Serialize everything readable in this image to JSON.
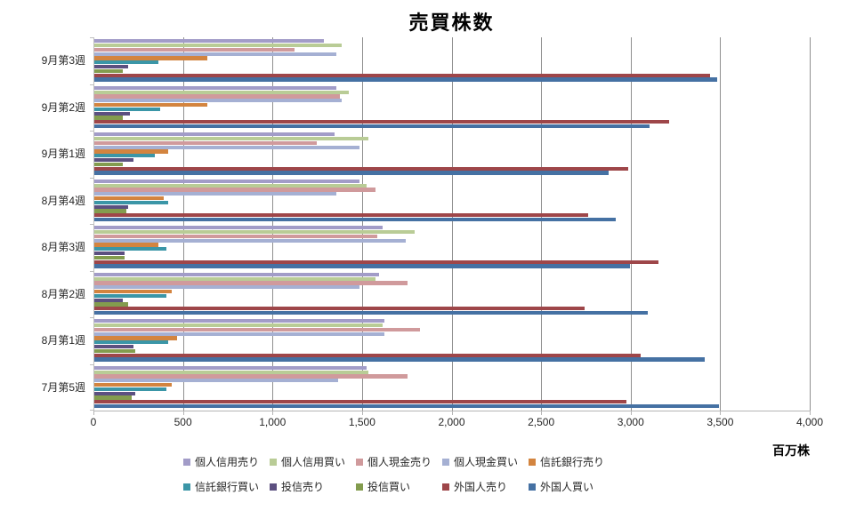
{
  "chart_data": {
    "type": "bar",
    "orientation": "horizontal",
    "title": "売買株数",
    "unit_label": "百万株",
    "grid": true,
    "legend_position": "bottom",
    "xlim": [
      0,
      4000
    ],
    "xticks": [
      "0",
      "500",
      "1,000",
      "1,500",
      "2,000",
      "2,500",
      "3,000",
      "3,500",
      "4,000"
    ],
    "categories": [
      "9月第3週",
      "9月第2週",
      "9月第1週",
      "8月第4週",
      "8月第3週",
      "8月第2週",
      "8月第1週",
      "7月第5週"
    ],
    "series": [
      {
        "name": "個人信用売り",
        "color": "#a29cc8",
        "values": [
          1280,
          1350,
          1340,
          1480,
          1610,
          1590,
          1620,
          1520
        ]
      },
      {
        "name": "個人信用買い",
        "color": "#b9cc96",
        "values": [
          1380,
          1420,
          1530,
          1520,
          1790,
          1570,
          1610,
          1530
        ]
      },
      {
        "name": "個人現金売り",
        "color": "#d09a9c",
        "values": [
          1120,
          1370,
          1240,
          1570,
          1580,
          1750,
          1820,
          1750
        ]
      },
      {
        "name": "個人現金買い",
        "color": "#a5b0d3",
        "values": [
          1350,
          1380,
          1480,
          1350,
          1740,
          1480,
          1620,
          1360
        ]
      },
      {
        "name": "信託銀行売り",
        "color": "#d3843f",
        "values": [
          630,
          630,
          410,
          390,
          360,
          430,
          460,
          430
        ]
      },
      {
        "name": "信託銀行買い",
        "color": "#3b96a7",
        "values": [
          360,
          370,
          340,
          410,
          400,
          400,
          410,
          400
        ]
      },
      {
        "name": "投信売り",
        "color": "#5c5080",
        "values": [
          190,
          200,
          220,
          190,
          170,
          160,
          220,
          230
        ]
      },
      {
        "name": "投信買い",
        "color": "#839c4e",
        "values": [
          160,
          160,
          160,
          180,
          170,
          190,
          230,
          210
        ]
      },
      {
        "name": "外国人売り",
        "color": "#9e4649",
        "values": [
          3440,
          3210,
          2980,
          2760,
          3150,
          2740,
          3050,
          2970
        ]
      },
      {
        "name": "外国人買い",
        "color": "#4571a3",
        "values": [
          3480,
          3100,
          2870,
          2910,
          2990,
          3090,
          3410,
          3490
        ]
      }
    ]
  }
}
